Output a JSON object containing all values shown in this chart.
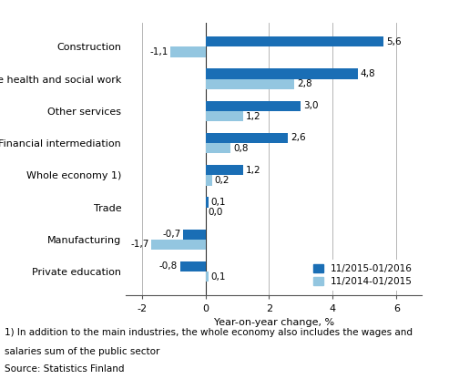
{
  "categories": [
    "Private education",
    "Manufacturing",
    "Trade",
    "Whole economy 1)",
    "Financial intermediation",
    "Other services",
    "Private health and social work",
    "Construction"
  ],
  "series1_label": "11/2015-01/2016",
  "series2_label": "11/2014-01/2015",
  "series1_values": [
    -0.8,
    -0.7,
    0.1,
    1.2,
    2.6,
    3.0,
    4.8,
    5.6
  ],
  "series2_values": [
    0.1,
    -1.7,
    0.0,
    0.2,
    0.8,
    1.2,
    2.8,
    -1.1
  ],
  "series1_color": "#1A6EB5",
  "series2_color": "#93C6E0",
  "bar_height": 0.32,
  "xlim": [
    -2.5,
    6.8
  ],
  "xticks": [
    -2,
    0,
    2,
    4,
    6
  ],
  "xlabel": "Year-on-year change, %",
  "footnote1": "1) In addition to the main industries, the whole economy also includes the wages and",
  "footnote2": "salaries sum of the public sector",
  "source": "Source: Statistics Finland",
  "background_color": "#ffffff",
  "grid_color": "#aaaaaa",
  "label_fontsize": 8.0,
  "tick_fontsize": 8.0,
  "value_fontsize": 7.5,
  "legend_fontsize": 7.5,
  "footnote_fontsize": 7.5
}
